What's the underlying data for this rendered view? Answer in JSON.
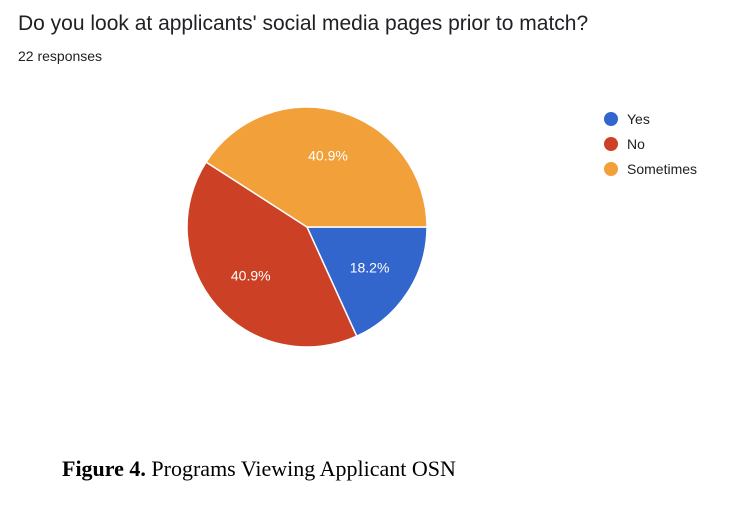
{
  "chart_data": {
    "type": "pie",
    "title": "Do you look at applicants' social media pages prior to match?",
    "subtitle": "22 responses",
    "legend_position": "right",
    "slices": [
      {
        "label": "Yes",
        "value": 18.2,
        "display": "18.2%",
        "color": "#3366cc"
      },
      {
        "label": "No",
        "value": 40.9,
        "display": "40.9%",
        "color": "#cc4125"
      },
      {
        "label": "Sometimes",
        "value": 40.9,
        "display": "40.9%",
        "color": "#f1a03a"
      }
    ]
  },
  "caption": {
    "label": "Figure 4.",
    "text": " Programs Viewing Applicant OSN"
  }
}
